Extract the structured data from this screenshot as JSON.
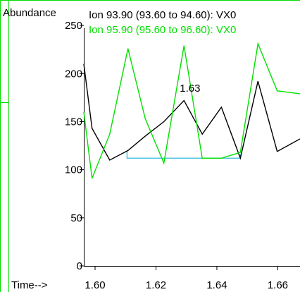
{
  "window": {
    "frame_color": "#00dd00"
  },
  "chart_data": {
    "type": "line",
    "ylabel": "Abundance",
    "xlabel": "Time-->",
    "ylim": [
      0,
      275
    ],
    "yticks": [
      {
        "value": 0,
        "label": "0"
      },
      {
        "value": 50,
        "label": "50"
      },
      {
        "value": 100,
        "label": "100"
      },
      {
        "value": 150,
        "label": "150"
      },
      {
        "value": 200,
        "label": "200"
      },
      {
        "value": 250,
        "label": "250"
      }
    ],
    "xlim": [
      1.5963,
      1.6673
    ],
    "xticks": [
      {
        "value": 1.6,
        "label": "1.60"
      },
      {
        "value": 1.62,
        "label": "1.62"
      },
      {
        "value": 1.64,
        "label": "1.64"
      },
      {
        "value": 1.66,
        "label": "1.66"
      }
    ],
    "grid": false,
    "series": [
      {
        "name": "Ion  93.90 (93.60 to 94.60): VX0",
        "color": "#000000",
        "x": [
          1.5963,
          1.599,
          1.6048,
          1.6108,
          1.6165,
          1.6226,
          1.6292,
          1.6352,
          1.6415,
          1.6477,
          1.6535,
          1.6598,
          1.6673
        ],
        "y": [
          210,
          143,
          110,
          120,
          135,
          150,
          172,
          137,
          165,
          112,
          192,
          119,
          132
        ]
      },
      {
        "name": "Ion  95.90 (95.60 to 96.60): VX0",
        "color": "#00e000",
        "x": [
          1.5963,
          1.599,
          1.6048,
          1.6108,
          1.6165,
          1.6226,
          1.6292,
          1.6352,
          1.6415,
          1.6477,
          1.6535,
          1.6598,
          1.6673
        ],
        "y": [
          160,
          91,
          137,
          226,
          153,
          107,
          229,
          112,
          112,
          118,
          231,
          182,
          179
        ]
      }
    ],
    "annotations": [
      {
        "text": "1.63",
        "x": 1.6312,
        "y": 181
      }
    ],
    "integration_baseline": {
      "color": "#33bbdd",
      "x_start": 1.6105,
      "x_end": 1.6477,
      "y": 112
    }
  }
}
